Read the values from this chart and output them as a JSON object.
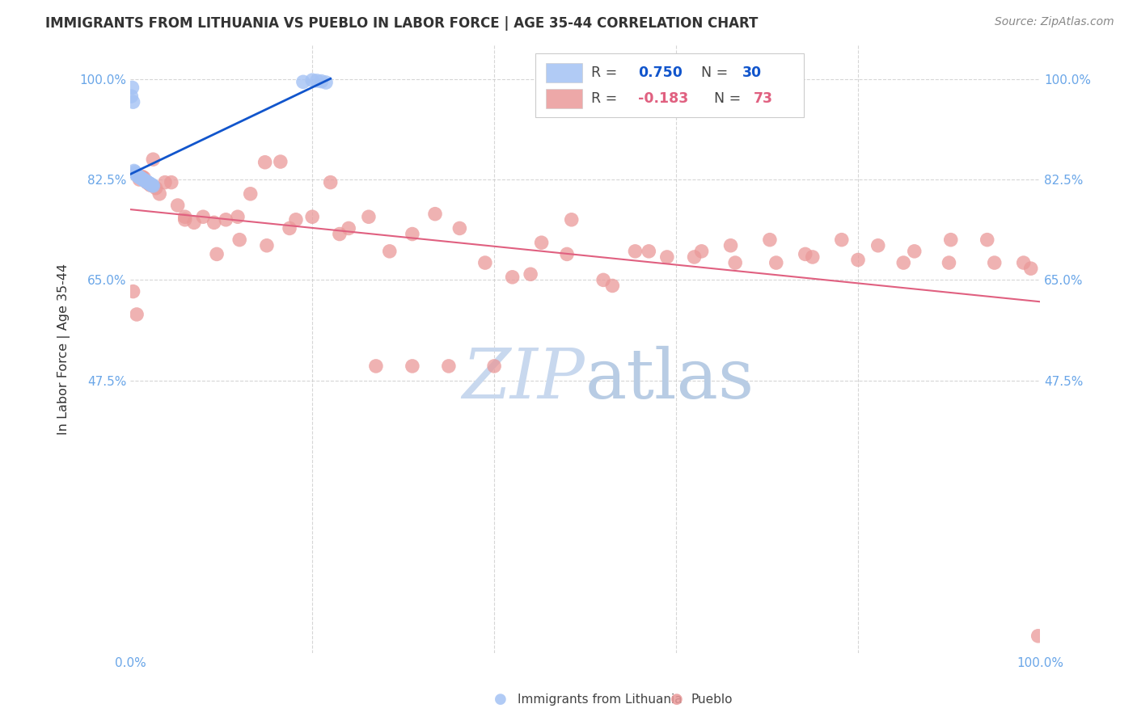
{
  "title": "IMMIGRANTS FROM LITHUANIA VS PUEBLO IN LABOR FORCE | AGE 35-44 CORRELATION CHART",
  "source_text": "Source: ZipAtlas.com",
  "ylabel": "In Labor Force | Age 35-44",
  "legend_labels": [
    "Immigrants from Lithuania",
    "Pueblo"
  ],
  "r_lithuania": 0.75,
  "n_lithuania": 30,
  "r_pueblo": -0.183,
  "n_pueblo": 73,
  "blue_color": "#a4c2f4",
  "pink_color": "#ea9999",
  "blue_line_color": "#1155cc",
  "pink_line_color": "#e06080",
  "axis_label_color": "#6aa6e8",
  "title_color": "#333333",
  "watermark_color": "#c8d8ee",
  "background_color": "#ffffff",
  "grid_color": "#cccccc",
  "y_tick_labels": [
    "100.0%",
    "82.5%",
    "65.0%",
    "47.5%"
  ],
  "y_tick_vals": [
    1.0,
    0.825,
    0.65,
    0.475
  ],
  "lithuania_x": [
    0.001,
    0.002,
    0.003,
    0.004,
    0.005,
    0.006,
    0.007,
    0.008,
    0.009,
    0.01,
    0.011,
    0.012,
    0.013,
    0.014,
    0.015,
    0.016,
    0.017,
    0.018,
    0.019,
    0.02,
    0.021,
    0.022,
    0.023,
    0.024,
    0.025,
    0.19,
    0.2,
    0.205,
    0.21,
    0.215
  ],
  "lithuania_y": [
    0.97,
    0.985,
    0.96,
    0.84,
    0.838,
    0.835,
    0.833,
    0.831,
    0.83,
    0.829,
    0.828,
    0.827,
    0.826,
    0.825,
    0.824,
    0.823,
    0.822,
    0.821,
    0.82,
    0.819,
    0.818,
    0.817,
    0.816,
    0.815,
    0.814,
    0.995,
    0.998,
    0.997,
    0.996,
    0.994
  ],
  "pueblo_x": [
    0.003,
    0.007,
    0.01,
    0.013,
    0.015,
    0.018,
    0.02,
    0.022,
    0.025,
    0.028,
    0.032,
    0.038,
    0.045,
    0.052,
    0.06,
    0.07,
    0.08,
    0.092,
    0.105,
    0.118,
    0.132,
    0.148,
    0.165,
    0.182,
    0.2,
    0.22,
    0.24,
    0.262,
    0.285,
    0.31,
    0.335,
    0.362,
    0.39,
    0.42,
    0.452,
    0.485,
    0.52,
    0.555,
    0.59,
    0.628,
    0.665,
    0.703,
    0.742,
    0.782,
    0.822,
    0.862,
    0.902,
    0.942,
    0.982,
    0.998,
    0.06,
    0.095,
    0.12,
    0.15,
    0.175,
    0.23,
    0.27,
    0.31,
    0.35,
    0.4,
    0.44,
    0.48,
    0.53,
    0.57,
    0.62,
    0.66,
    0.71,
    0.75,
    0.8,
    0.85,
    0.9,
    0.95,
    0.99
  ],
  "pueblo_y": [
    0.63,
    0.59,
    0.825,
    0.83,
    0.828,
    0.82,
    0.818,
    0.815,
    0.86,
    0.81,
    0.8,
    0.82,
    0.82,
    0.78,
    0.755,
    0.75,
    0.76,
    0.75,
    0.755,
    0.76,
    0.8,
    0.855,
    0.856,
    0.755,
    0.76,
    0.82,
    0.74,
    0.76,
    0.7,
    0.73,
    0.765,
    0.74,
    0.68,
    0.655,
    0.715,
    0.755,
    0.65,
    0.7,
    0.69,
    0.7,
    0.68,
    0.72,
    0.695,
    0.72,
    0.71,
    0.7,
    0.72,
    0.72,
    0.68,
    0.03,
    0.76,
    0.695,
    0.72,
    0.71,
    0.74,
    0.73,
    0.5,
    0.5,
    0.5,
    0.5,
    0.66,
    0.695,
    0.64,
    0.7,
    0.69,
    0.71,
    0.68,
    0.69,
    0.685,
    0.68,
    0.68,
    0.68,
    0.67
  ]
}
